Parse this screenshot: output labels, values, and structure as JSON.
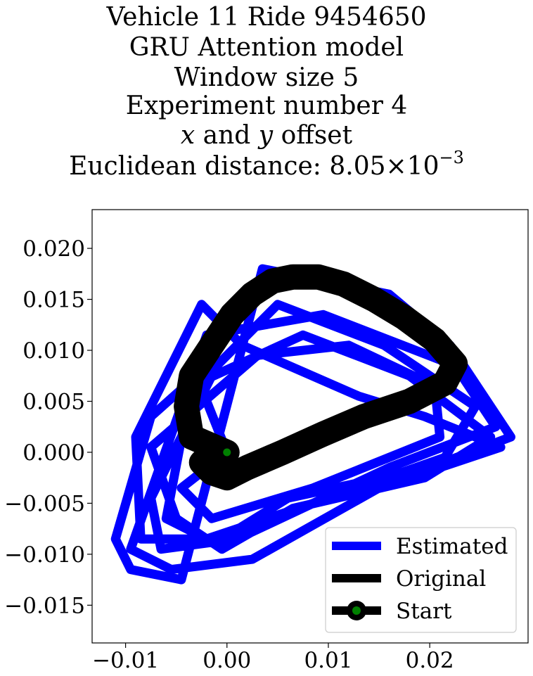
{
  "chart_data": {
    "type": "line",
    "title_lines": [
      "Vehicle 11 Ride 9454650",
      "GRU Attention model",
      "Window size 5",
      "Experiment number 4"
    ],
    "title_offset": {
      "x": "x",
      "and": " and ",
      "y": "y",
      "rest": " offset"
    },
    "title_distance": {
      "prefix": "Euclidean distance: 8.05",
      "times": "×",
      "base": "10",
      "exponent": "−3"
    },
    "xlim": [
      -0.0133,
      0.0297
    ],
    "ylim": [
      -0.0187,
      0.0238
    ],
    "xticks": [
      {
        "value": -0.01,
        "label": "−0.01"
      },
      {
        "value": 0.0,
        "label": "0.00"
      },
      {
        "value": 0.01,
        "label": "0.01"
      },
      {
        "value": 0.02,
        "label": "0.02"
      }
    ],
    "yticks": [
      {
        "value": 0.02,
        "label": "0.020"
      },
      {
        "value": 0.015,
        "label": "0.015"
      },
      {
        "value": 0.01,
        "label": "0.010"
      },
      {
        "value": 0.005,
        "label": "0.005"
      },
      {
        "value": 0.0,
        "label": "0.000"
      },
      {
        "value": -0.005,
        "label": "−0.005"
      },
      {
        "value": -0.01,
        "label": "−0.010"
      },
      {
        "value": -0.015,
        "label": "−0.015"
      }
    ],
    "grid": false,
    "legend_position": "lower-right",
    "series": [
      {
        "name": "Estimated",
        "color": "#0000ff",
        "x": [
          0.0,
          -0.003,
          -0.0075,
          -0.011,
          -0.0095,
          -0.0045,
          0.0035,
          0.016,
          0.022,
          0.028,
          0.02,
          0.006,
          -0.0005,
          -0.0085,
          -0.009,
          -0.0025,
          0.0015,
          0.013,
          0.0195,
          0.027,
          0.015,
          0.0025,
          -0.0055,
          -0.0095,
          -0.002,
          0.0095,
          0.0225,
          0.0265,
          0.016,
          0.001,
          -0.0065,
          -0.0075,
          -0.001,
          0.005,
          0.0155,
          0.0245,
          0.0215,
          0.01,
          -0.002,
          -0.006,
          -0.0035,
          0.0075,
          0.018,
          0.026,
          0.0195,
          0.0065,
          -0.0005,
          -0.005,
          -0.0075,
          0.003,
          0.012,
          0.0205,
          0.021,
          0.0085,
          -0.0015,
          -0.0045,
          0.0
        ],
        "y": [
          0.0,
          0.0075,
          0.0035,
          -0.0085,
          -0.0115,
          -0.0125,
          0.018,
          0.0155,
          0.0105,
          0.0015,
          -0.0015,
          -0.0045,
          -0.0085,
          -0.0085,
          0.0015,
          0.0145,
          0.0105,
          0.0055,
          0.0035,
          0.0005,
          -0.0035,
          -0.0105,
          -0.0115,
          -0.0095,
          0.0115,
          0.0135,
          0.0085,
          0.0025,
          -0.0015,
          -0.0085,
          -0.0095,
          -0.0045,
          0.0085,
          0.0145,
          0.0105,
          0.0045,
          -0.0005,
          -0.0045,
          -0.0085,
          -0.0065,
          0.0065,
          0.0115,
          0.0075,
          0.0015,
          -0.0025,
          -0.0055,
          -0.0095,
          -0.0065,
          0.0005,
          0.0095,
          0.0105,
          0.0065,
          0.0015,
          -0.0035,
          -0.0065,
          -0.0035,
          0.0
        ]
      },
      {
        "name": "Original",
        "color": "#000000",
        "x": [
          0.0,
          -0.0035,
          -0.004,
          -0.0035,
          -0.0015,
          0.0005,
          0.0025,
          0.0045,
          0.0065,
          0.009,
          0.0115,
          0.0145,
          0.0175,
          0.0205,
          0.0225,
          0.0215,
          0.018,
          0.0135,
          0.0095,
          0.0055,
          0.002,
          0.0,
          -0.0015,
          -0.0025,
          -0.0015,
          0.0
        ],
        "y": [
          0.0,
          0.0015,
          0.0045,
          0.0075,
          0.0105,
          0.0135,
          0.0155,
          0.0168,
          0.0172,
          0.0172,
          0.0165,
          0.015,
          0.0132,
          0.011,
          0.0087,
          0.0068,
          0.005,
          0.0035,
          0.0018,
          0.0,
          -0.0015,
          -0.0025,
          -0.002,
          -0.001,
          0.0,
          0.0
        ]
      }
    ],
    "legend": [
      {
        "label": "Estimated",
        "kind": "line",
        "color": "#0000ff"
      },
      {
        "label": "Original",
        "kind": "line",
        "color": "#000000"
      },
      {
        "label": "Start",
        "kind": "marker",
        "color": "#000000",
        "marker_color": "#008000"
      }
    ],
    "start_point": {
      "name": "Start",
      "x": 0.0,
      "y": 0.0,
      "color": "#008000"
    }
  }
}
